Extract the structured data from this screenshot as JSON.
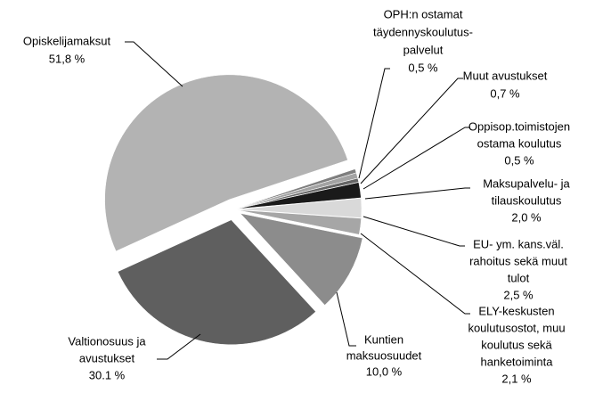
{
  "chart_data": {
    "type": "pie",
    "categories": [
      [
        "Opiskelijamaksut"
      ],
      [
        "OPH:n ostamat",
        "täydennyskoulutus-",
        "palvelut"
      ],
      [
        "Muut avustukset"
      ],
      [
        "Oppisop.toimistojen",
        "ostama koulutus"
      ],
      [
        "Maksupalvelu- ja",
        "tilauskoulutus"
      ],
      [
        "EU- ym. kans.väl.",
        "rahoitus sekä muut",
        "tulot"
      ],
      [
        "ELY-keskusten",
        "koulutusostot, muu",
        "koulutus sekä",
        "hanketoiminta"
      ],
      [
        "Kuntien",
        "maksuosuudet"
      ],
      [
        "Valtionosuus ja",
        "avustukset"
      ]
    ],
    "values": [
      51.8,
      0.5,
      0.7,
      0.5,
      2.0,
      2.5,
      2.1,
      10.0,
      30.1
    ],
    "value_labels": [
      "51,8 %",
      "0,5 %",
      "0,7 %",
      "0,5 %",
      "2,0 %",
      "2,5 %",
      "2,1 %",
      "10,0 %",
      "30.1 %"
    ],
    "colors": [
      "#b3b3b3",
      "#7f7f7f",
      "#a3a3a3",
      "#666666",
      "#1a1a1a",
      "#d9d9d9",
      "#a6a6a6",
      "#8c8c8c",
      "#5f5f5f"
    ]
  }
}
